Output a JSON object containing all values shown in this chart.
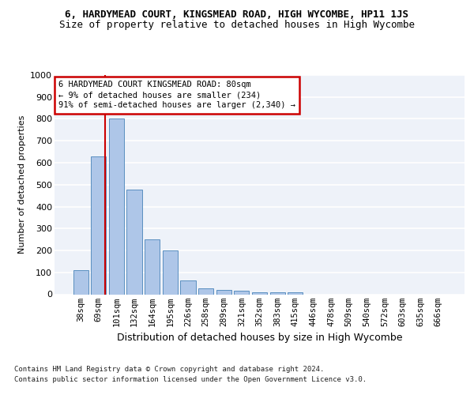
{
  "title1": "6, HARDYMEAD COURT, KINGSMEAD ROAD, HIGH WYCOMBE, HP11 1JS",
  "title2": "Size of property relative to detached houses in High Wycombe",
  "xlabel": "Distribution of detached houses by size in High Wycombe",
  "ylabel": "Number of detached properties",
  "categories": [
    "38sqm",
    "69sqm",
    "101sqm",
    "132sqm",
    "164sqm",
    "195sqm",
    "226sqm",
    "258sqm",
    "289sqm",
    "321sqm",
    "352sqm",
    "383sqm",
    "415sqm",
    "446sqm",
    "478sqm",
    "509sqm",
    "540sqm",
    "572sqm",
    "603sqm",
    "635sqm",
    "666sqm"
  ],
  "values": [
    110,
    630,
    800,
    478,
    250,
    200,
    62,
    28,
    20,
    15,
    10,
    10,
    10,
    0,
    0,
    0,
    0,
    0,
    0,
    0,
    0
  ],
  "bar_color": "#aec6e8",
  "bar_edge_color": "#5a8fc0",
  "annotation_line1": "6 HARDYMEAD COURT KINGSMEAD ROAD: 80sqm",
  "annotation_line2": "← 9% of detached houses are smaller (234)",
  "annotation_line3": "91% of semi-detached houses are larger (2,340) →",
  "annotation_box_color": "#cc0000",
  "vline_color": "#cc0000",
  "vline_pos": 1.35,
  "ylim": [
    0,
    1000
  ],
  "yticks": [
    0,
    100,
    200,
    300,
    400,
    500,
    600,
    700,
    800,
    900,
    1000
  ],
  "bg_color": "#eef2f9",
  "footer1": "Contains HM Land Registry data © Crown copyright and database right 2024.",
  "footer2": "Contains public sector information licensed under the Open Government Licence v3.0.",
  "title1_fontsize": 9,
  "title2_fontsize": 9,
  "ylabel_fontsize": 8,
  "xlabel_fontsize": 9,
  "tick_fontsize": 7.5,
  "footer_fontsize": 6.5,
  "annot_fontsize": 7.5
}
